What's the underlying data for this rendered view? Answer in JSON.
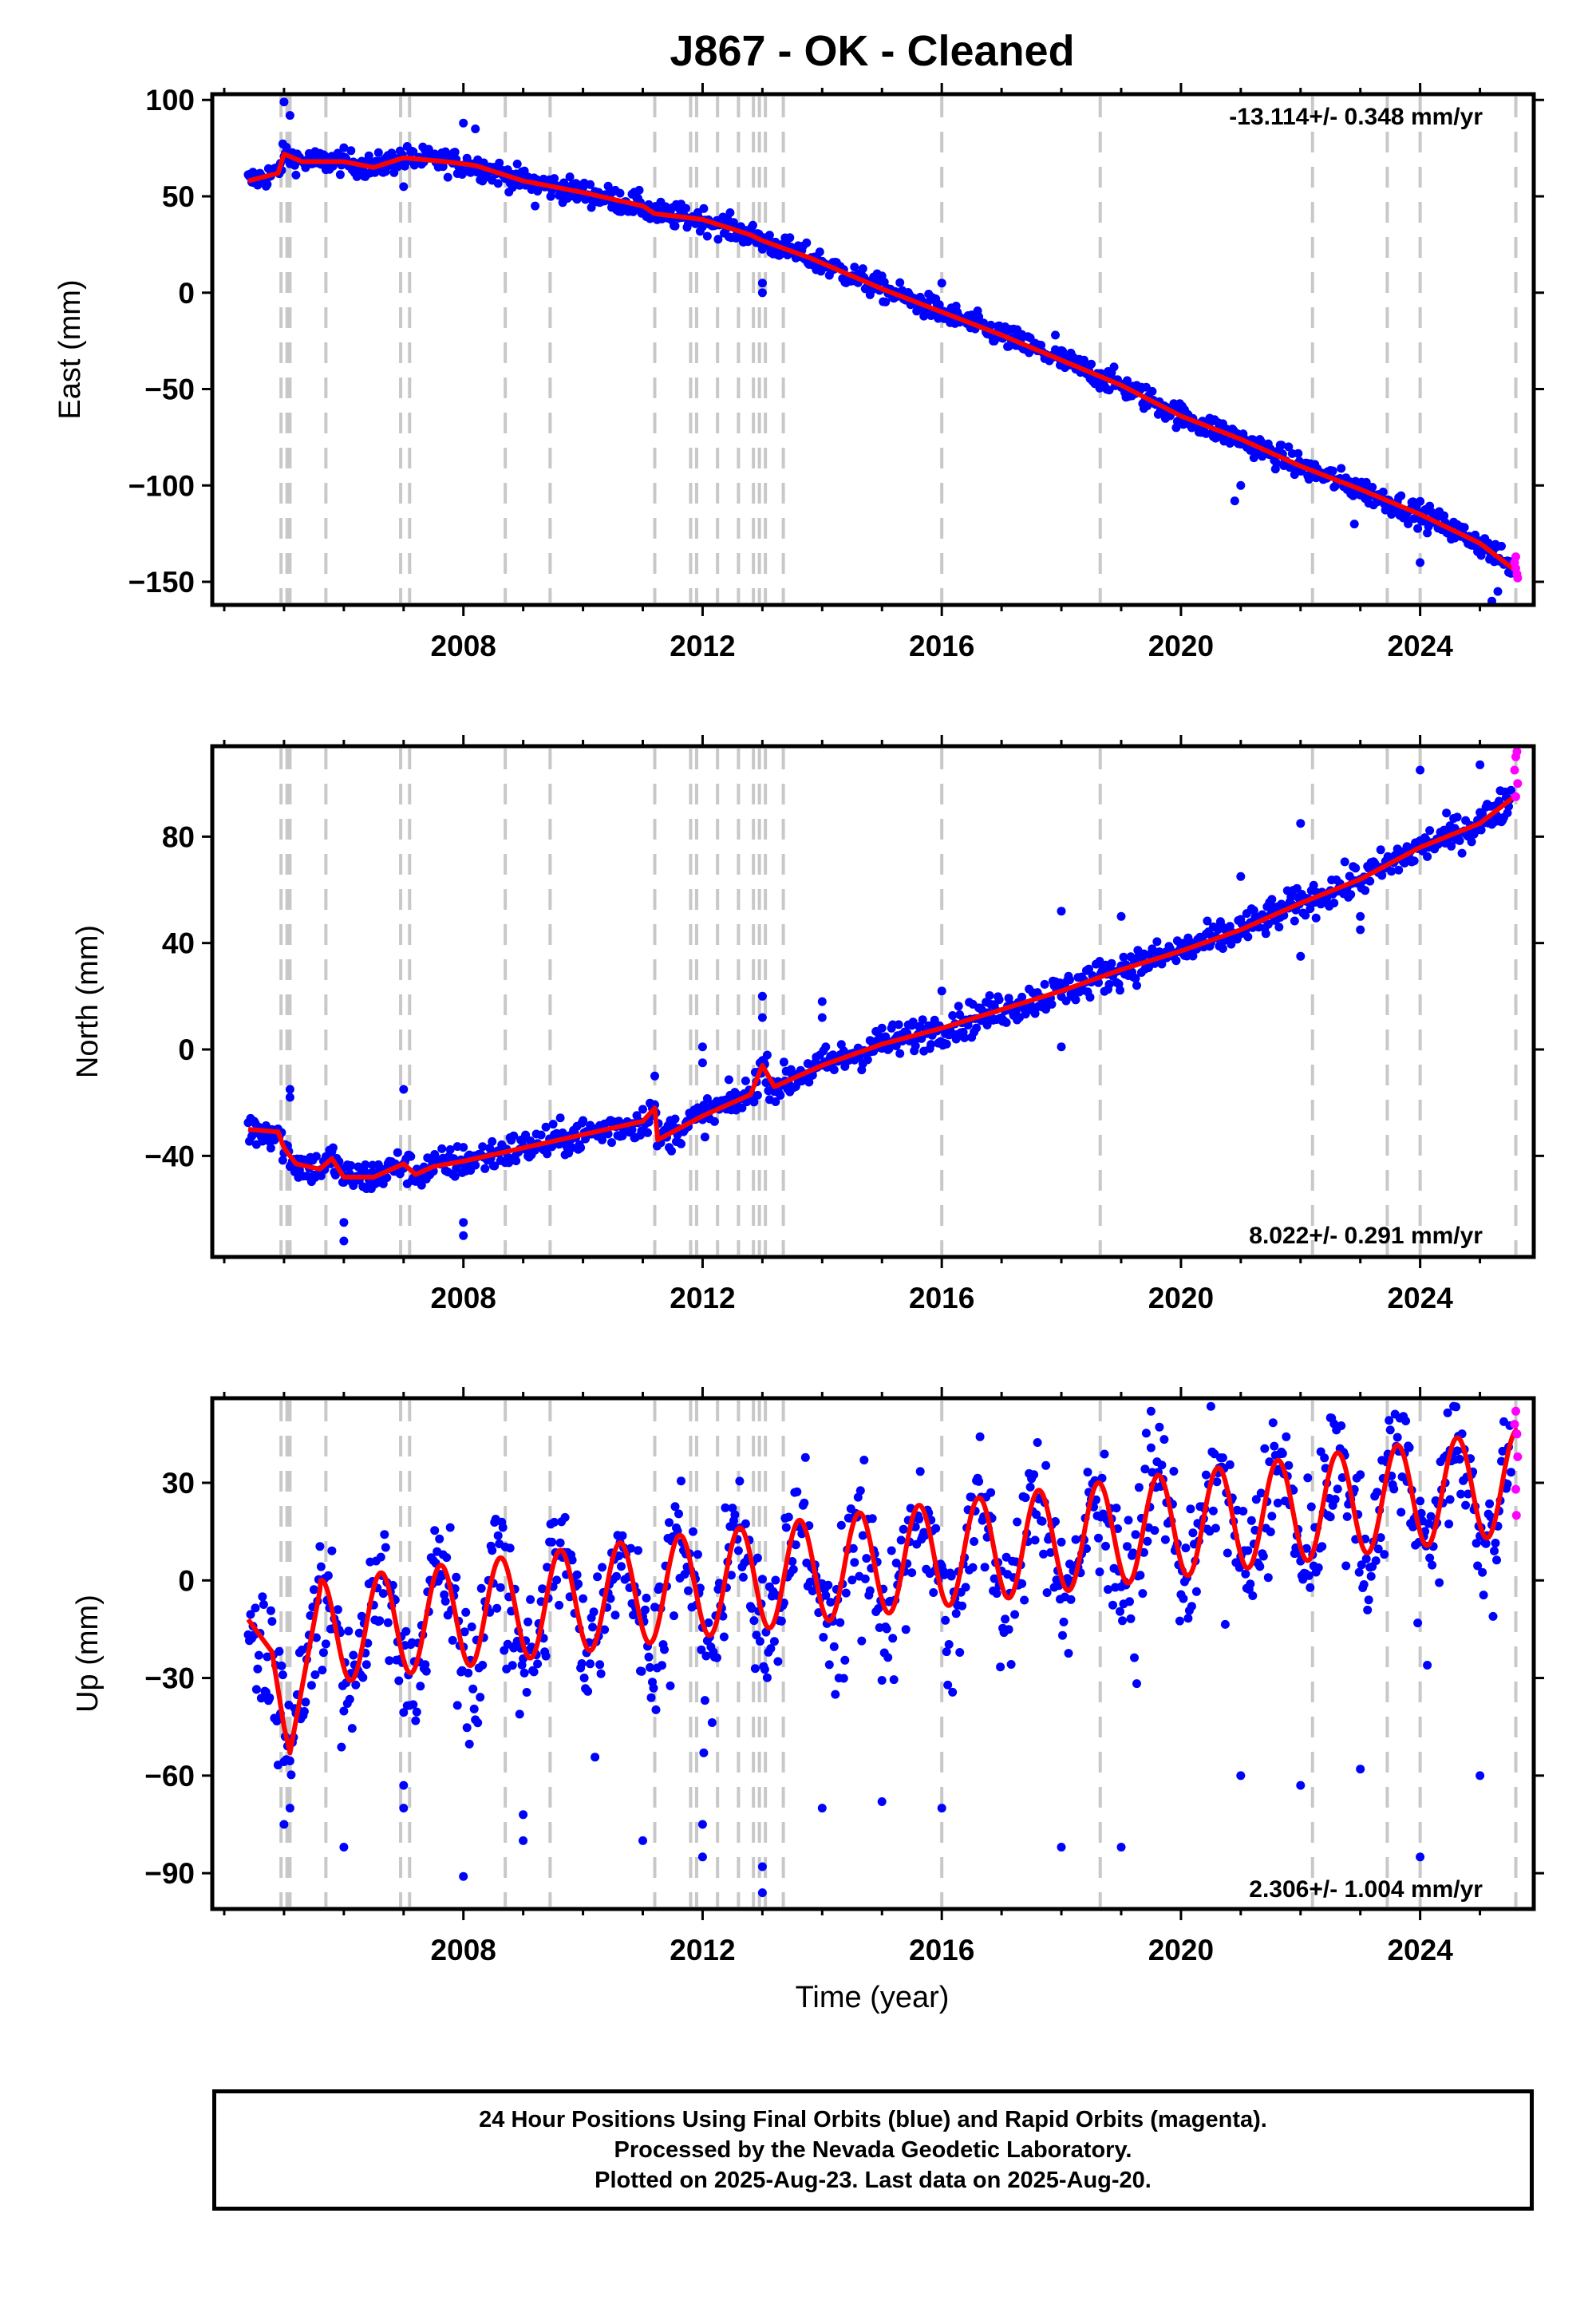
{
  "title": "J867  - OK - Cleaned",
  "xlabel": "Time (year)",
  "caption": [
    "24 Hour Positions Using Final Orbits (blue) and Rapid Orbits (magenta).",
    "Processed by the Nevada Geodetic Laboratory.",
    "Plotted on 2025-Aug-23. Last data on 2025-Aug-20."
  ],
  "colors": {
    "final": "#0000ff",
    "rapid": "#ff00ff",
    "model": "#ff0000",
    "event": "#c8c8c8"
  },
  "chart_data": [
    {
      "type": "scatter",
      "component": "east",
      "ylabel": "East (mm)",
      "xlim": [
        2003.8,
        2025.9
      ],
      "ylim": [
        -162,
        103
      ],
      "yticks": [
        100,
        50,
        0,
        -50,
        -100,
        -150
      ],
      "xticks": [
        2008,
        2012,
        2016,
        2020,
        2024
      ],
      "rate": "-13.114+/- 0.348 mm/yr",
      "rate_position": "top-right",
      "start_year": 2004.4,
      "end_year": 2025.63,
      "model_points": [
        [
          2004.4,
          58
        ],
        [
          2004.9,
          62
        ],
        [
          2005.0,
          72
        ],
        [
          2005.3,
          68
        ],
        [
          2006.0,
          68
        ],
        [
          2006.5,
          65
        ],
        [
          2007.0,
          70
        ],
        [
          2007.7,
          68
        ],
        [
          2008.2,
          66
        ],
        [
          2009.0,
          58
        ],
        [
          2010.0,
          52
        ],
        [
          2011.0,
          45
        ],
        [
          2011.2,
          41
        ],
        [
          2012.0,
          38
        ],
        [
          2012.8,
          30
        ],
        [
          2013.0,
          27
        ],
        [
          2013.8,
          18
        ],
        [
          2015.0,
          2
        ],
        [
          2016.0,
          -10
        ],
        [
          2017.0,
          -22
        ],
        [
          2018.0,
          -35
        ],
        [
          2019.0,
          -48
        ],
        [
          2020.0,
          -64
        ],
        [
          2021.0,
          -76
        ],
        [
          2022.0,
          -90
        ],
        [
          2023.0,
          -102
        ],
        [
          2024.0,
          -115
        ],
        [
          2025.0,
          -130
        ],
        [
          2025.63,
          -145
        ]
      ],
      "outliers": [
        [
          2005.0,
          99
        ],
        [
          2005.1,
          92
        ],
        [
          2007.0,
          55
        ],
        [
          2008.0,
          88
        ],
        [
          2008.2,
          85
        ],
        [
          2009.2,
          45
        ],
        [
          2013.0,
          5
        ],
        [
          2013.0,
          0
        ],
        [
          2016.0,
          5
        ],
        [
          2017.9,
          -22
        ],
        [
          2019.9,
          -58
        ],
        [
          2020.9,
          -108
        ],
        [
          2021.0,
          -100
        ],
        [
          2022.9,
          -120
        ],
        [
          2023.5,
          -112
        ],
        [
          2024.0,
          -140
        ],
        [
          2025.2,
          -160
        ],
        [
          2025.3,
          -155
        ]
      ],
      "rapid_points": [
        [
          2025.58,
          -140
        ],
        [
          2025.6,
          -143
        ],
        [
          2025.62,
          -146
        ],
        [
          2025.63,
          -148
        ],
        [
          2025.6,
          -137
        ]
      ]
    },
    {
      "type": "scatter",
      "component": "north",
      "ylabel": "North (mm)",
      "xlim": [
        2003.8,
        2025.9
      ],
      "ylim": [
        -78,
        114
      ],
      "yticks": [
        80,
        40,
        0,
        -40
      ],
      "xticks": [
        2008,
        2012,
        2016,
        2020,
        2024
      ],
      "rate": "8.022+/- 0.291 mm/yr",
      "rate_position": "bottom-right",
      "start_year": 2004.4,
      "end_year": 2025.63,
      "model_points": [
        [
          2004.4,
          -30
        ],
        [
          2004.9,
          -31
        ],
        [
          2005.0,
          -37
        ],
        [
          2005.2,
          -43
        ],
        [
          2005.6,
          -45
        ],
        [
          2005.8,
          -41
        ],
        [
          2006.0,
          -48
        ],
        [
          2006.5,
          -48
        ],
        [
          2007.0,
          -43
        ],
        [
          2007.2,
          -47
        ],
        [
          2007.5,
          -44
        ],
        [
          2008.0,
          -42
        ],
        [
          2009.0,
          -37
        ],
        [
          2010.0,
          -32
        ],
        [
          2011.0,
          -27
        ],
        [
          2011.2,
          -22
        ],
        [
          2011.25,
          -34
        ],
        [
          2012.0,
          -25
        ],
        [
          2012.8,
          -17
        ],
        [
          2013.0,
          -6
        ],
        [
          2013.2,
          -14
        ],
        [
          2014.0,
          -6
        ],
        [
          2015.0,
          2
        ],
        [
          2016.0,
          8
        ],
        [
          2017.0,
          15
        ],
        [
          2018.0,
          22
        ],
        [
          2019.0,
          30
        ],
        [
          2020.0,
          37
        ],
        [
          2021.0,
          45
        ],
        [
          2022.0,
          55
        ],
        [
          2023.0,
          64
        ],
        [
          2024.0,
          76
        ],
        [
          2025.0,
          85
        ],
        [
          2025.63,
          96
        ]
      ],
      "outliers": [
        [
          2005.1,
          -15
        ],
        [
          2005.1,
          -18
        ],
        [
          2006.0,
          -65
        ],
        [
          2006.0,
          -72
        ],
        [
          2007.0,
          -15
        ],
        [
          2008.0,
          -65
        ],
        [
          2008.0,
          -70
        ],
        [
          2011.2,
          -10
        ],
        [
          2012.0,
          -5
        ],
        [
          2012.0,
          1
        ],
        [
          2013.0,
          20
        ],
        [
          2013.0,
          12
        ],
        [
          2014.0,
          18
        ],
        [
          2014.0,
          12
        ],
        [
          2015.0,
          8
        ],
        [
          2016.0,
          22
        ],
        [
          2018.0,
          52
        ],
        [
          2018.0,
          1
        ],
        [
          2019.0,
          50
        ],
        [
          2021.0,
          65
        ],
        [
          2022.0,
          85
        ],
        [
          2022.0,
          35
        ],
        [
          2023.0,
          50
        ],
        [
          2023.0,
          45
        ],
        [
          2024.0,
          105
        ],
        [
          2025.0,
          107
        ]
      ],
      "rapid_points": [
        [
          2025.58,
          105
        ],
        [
          2025.6,
          110
        ],
        [
          2025.62,
          112
        ],
        [
          2025.63,
          100
        ],
        [
          2025.6,
          95
        ]
      ]
    },
    {
      "type": "scatter",
      "component": "up",
      "ylabel": "Up (mm)",
      "xlim": [
        2003.8,
        2025.9
      ],
      "ylim": [
        -101,
        56
      ],
      "yticks": [
        30,
        0,
        -30,
        -60,
        -90
      ],
      "xticks": [
        2008,
        2012,
        2016,
        2020,
        2024
      ],
      "rate": "2.306+/- 1.004 mm/yr",
      "rate_position": "bottom-right",
      "start_year": 2004.4,
      "end_year": 2025.63,
      "seasonal": {
        "trend_mm_per_yr": 2.306,
        "offset_mm": -16,
        "amplitude_mm": 16,
        "peak_year_fraction": 0.62
      },
      "model_points": [
        [
          2004.4,
          -12
        ],
        [
          2004.8,
          -22
        ],
        [
          2005.0,
          -45
        ],
        [
          2005.1,
          -53
        ],
        [
          2005.6,
          -3
        ]
      ],
      "outliers": [
        [
          2005.0,
          -75
        ],
        [
          2005.1,
          -70
        ],
        [
          2006.0,
          -82
        ],
        [
          2007.0,
          -63
        ],
        [
          2007.0,
          -70
        ],
        [
          2008.0,
          -91
        ],
        [
          2009.0,
          -72
        ],
        [
          2009.0,
          -80
        ],
        [
          2011.0,
          -80
        ],
        [
          2012.0,
          -75
        ],
        [
          2012.0,
          -85
        ],
        [
          2013.0,
          -96
        ],
        [
          2013.0,
          -88
        ],
        [
          2014.0,
          -70
        ],
        [
          2015.0,
          -68
        ],
        [
          2016.0,
          -70
        ],
        [
          2018.0,
          -82
        ],
        [
          2019.0,
          -82
        ],
        [
          2019.5,
          52
        ],
        [
          2021.0,
          -60
        ],
        [
          2022.0,
          -63
        ],
        [
          2022.5,
          50
        ],
        [
          2023.0,
          -58
        ],
        [
          2024.0,
          -85
        ],
        [
          2024.5,
          40
        ],
        [
          2025.0,
          -60
        ]
      ],
      "rapid_points": [
        [
          2025.58,
          48
        ],
        [
          2025.6,
          52
        ],
        [
          2025.62,
          45
        ],
        [
          2025.63,
          38
        ],
        [
          2025.6,
          28
        ],
        [
          2025.61,
          20
        ]
      ]
    }
  ],
  "event_lines": [
    2004.95,
    2005.05,
    2005.1,
    2005.7,
    2006.95,
    2007.1,
    2008.7,
    2009.45,
    2011.2,
    2011.8,
    2011.9,
    2012.25,
    2012.6,
    2012.85,
    2012.95,
    2013.05,
    2013.35,
    2016.0,
    2018.65,
    2022.2,
    2023.45,
    2024.0,
    2025.6
  ]
}
